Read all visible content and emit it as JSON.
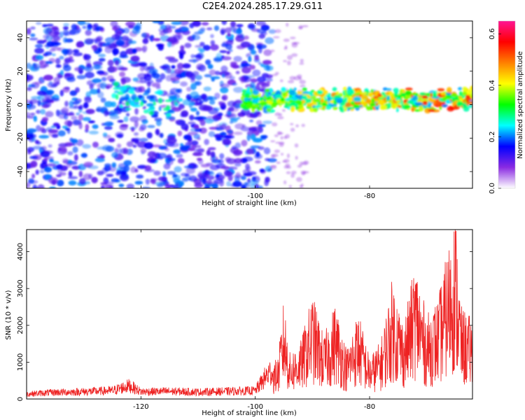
{
  "title": "C2E4.2024.285.17.29.G11",
  "chart_data": [
    {
      "type": "heatmap",
      "xlabel": "Height of straight line (km)",
      "ylabel": "Frequency (Hz)",
      "xlim": [
        -140,
        -62
      ],
      "ylim": [
        -50,
        50
      ],
      "x_ticks": [
        -120,
        -100,
        -80
      ],
      "y_ticks": [
        40,
        20,
        0,
        -20,
        -40
      ],
      "colorbar": {
        "label": "Normalized spectral amplitude",
        "range": [
          0.0,
          0.65
        ],
        "ticks": [
          0.0,
          0.2,
          0.4,
          0.6
        ],
        "colormap": [
          "#ffffff",
          "#8a2be2",
          "#0000ff",
          "#00ffff",
          "#00ff00",
          "#ffff00",
          "#ff8000",
          "#ff0000",
          "#ff1493"
        ]
      },
      "features": [
        {
          "description_from_axes": "broad low-amplitude noise",
          "x_range": [
            -140,
            -97
          ],
          "freq_range": [
            -50,
            50
          ],
          "amplitude": 0.1
        },
        {
          "description_from_axes": "narrow signal band",
          "x_range": [
            -102,
            -62
          ],
          "freq_center": 3,
          "freq_width": 10,
          "amplitude_range": [
            0.2,
            0.65
          ]
        }
      ]
    },
    {
      "type": "line",
      "xlabel": "Height of straight line (km)",
      "ylabel": "SNR (10 * v/v)",
      "xlim": [
        -140,
        -62
      ],
      "ylim": [
        0,
        4600
      ],
      "x_ticks": [
        -120,
        -100,
        -80
      ],
      "y_ticks": [
        0,
        1000,
        2000,
        3000,
        4000
      ],
      "line_color": "#ee2222",
      "series": [
        {
          "x": [
            -140,
            -135,
            -130,
            -125,
            -122,
            -120,
            -115,
            -110,
            -105,
            -100,
            -98,
            -96,
            -95,
            -94,
            -92,
            -90,
            -88,
            -86,
            -84,
            -82,
            -80,
            -78,
            -76,
            -74,
            -72,
            -70,
            -68,
            -66,
            -65,
            -64,
            -62
          ],
          "values": [
            150,
            200,
            220,
            250,
            400,
            220,
            230,
            210,
            230,
            250,
            700,
            1000,
            2400,
            1100,
            1400,
            2500,
            1500,
            2300,
            1200,
            2100,
            1000,
            1400,
            2900,
            1800,
            3300,
            2000,
            2400,
            3800,
            4500,
            2200,
            1900
          ]
        }
      ]
    }
  ]
}
